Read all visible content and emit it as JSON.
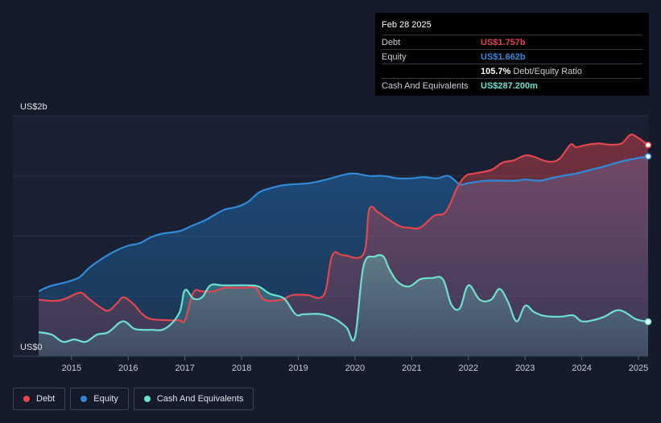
{
  "colors": {
    "debt": "#e2464f",
    "equity": "#2f8ad8",
    "cash": "#6ee0cf",
    "grid": "#2a3140",
    "background": "#151b2b"
  },
  "tooltip": {
    "date": "Feb 28 2025",
    "rows": [
      {
        "label": "Debt",
        "value": "US$1.757b"
      },
      {
        "label": "Equity",
        "value": "US$1.662b"
      },
      {
        "label": "",
        "value": "105.7%",
        "suffix": "Debt/Equity Ratio"
      },
      {
        "label": "Cash And Equivalents",
        "value": "US$287.200m"
      }
    ]
  },
  "legend": [
    {
      "label": "Debt"
    },
    {
      "label": "Equity"
    },
    {
      "label": "Cash And Equivalents"
    }
  ],
  "chart_data": {
    "type": "area",
    "title": "",
    "xlabel": "",
    "ylabel": "",
    "y_tick_labels": [
      {
        "value": 2.0,
        "label": "US$2b"
      },
      {
        "value": 0,
        "label": "US$0"
      }
    ],
    "ylim": [
      0,
      2.0
    ],
    "xlim": [
      2014.42,
      2025.17
    ],
    "x_ticks": [
      2015,
      2016,
      2017,
      2018,
      2019,
      2020,
      2021,
      2022,
      2023,
      2024,
      2025
    ],
    "grid": "horizontal",
    "legend_position": "bottom-left",
    "series": [
      {
        "name": "Debt",
        "x": [
          2014.42,
          2014.7,
          2014.9,
          2015.15,
          2015.3,
          2015.5,
          2015.65,
          2015.8,
          2015.92,
          2016.1,
          2016.25,
          2016.4,
          2016.7,
          2016.9,
          2017.0,
          2017.15,
          2017.3,
          2017.5,
          2017.7,
          2017.9,
          2018.1,
          2018.25,
          2018.4,
          2018.7,
          2018.9,
          2019.15,
          2019.45,
          2019.6,
          2019.8,
          2020.15,
          2020.25,
          2020.4,
          2020.55,
          2020.8,
          2020.95,
          2021.15,
          2021.4,
          2021.6,
          2021.8,
          2021.95,
          2022.1,
          2022.4,
          2022.6,
          2022.8,
          2023.0,
          2023.15,
          2023.4,
          2023.6,
          2023.8,
          2023.9,
          2024.1,
          2024.3,
          2024.5,
          2024.7,
          2024.85,
          2024.95,
          2025.17
        ],
        "values": [
          0.47,
          0.46,
          0.48,
          0.53,
          0.48,
          0.41,
          0.38,
          0.44,
          0.49,
          0.43,
          0.35,
          0.31,
          0.3,
          0.3,
          0.3,
          0.53,
          0.54,
          0.54,
          0.57,
          0.57,
          0.57,
          0.57,
          0.47,
          0.47,
          0.51,
          0.51,
          0.51,
          0.84,
          0.84,
          0.85,
          1.22,
          1.2,
          1.15,
          1.08,
          1.07,
          1.07,
          1.17,
          1.2,
          1.4,
          1.5,
          1.52,
          1.55,
          1.61,
          1.63,
          1.67,
          1.66,
          1.62,
          1.64,
          1.76,
          1.74,
          1.76,
          1.77,
          1.76,
          1.77,
          1.84,
          1.83,
          1.757
        ]
      },
      {
        "name": "Equity",
        "x": [
          2014.42,
          2014.6,
          2014.85,
          2015.0,
          2015.15,
          2015.3,
          2015.5,
          2015.75,
          2016.0,
          2016.2,
          2016.4,
          2016.6,
          2016.9,
          2017.1,
          2017.35,
          2017.5,
          2017.7,
          2017.9,
          2018.1,
          2018.3,
          2018.45,
          2018.7,
          2018.9,
          2019.2,
          2019.5,
          2019.8,
          2020.0,
          2020.25,
          2020.5,
          2020.75,
          2021.0,
          2021.2,
          2021.45,
          2021.65,
          2021.85,
          2022.0,
          2022.3,
          2022.6,
          2022.85,
          2023.0,
          2023.25,
          2023.45,
          2023.65,
          2023.9,
          2024.15,
          2024.4,
          2024.7,
          2024.95,
          2025.17
        ],
        "values": [
          0.54,
          0.58,
          0.61,
          0.63,
          0.66,
          0.73,
          0.8,
          0.87,
          0.92,
          0.94,
          0.99,
          1.02,
          1.04,
          1.08,
          1.13,
          1.17,
          1.22,
          1.24,
          1.28,
          1.36,
          1.39,
          1.42,
          1.43,
          1.44,
          1.47,
          1.51,
          1.52,
          1.5,
          1.5,
          1.48,
          1.48,
          1.49,
          1.48,
          1.5,
          1.43,
          1.44,
          1.46,
          1.46,
          1.46,
          1.47,
          1.46,
          1.48,
          1.5,
          1.52,
          1.55,
          1.58,
          1.62,
          1.645,
          1.662
        ]
      },
      {
        "name": "Cash And Equivalents",
        "x": [
          2014.42,
          2014.65,
          2014.85,
          2015.05,
          2015.25,
          2015.45,
          2015.65,
          2015.9,
          2016.1,
          2016.25,
          2016.4,
          2016.65,
          2016.9,
          2017.0,
          2017.15,
          2017.3,
          2017.45,
          2017.65,
          2017.9,
          2018.1,
          2018.3,
          2018.5,
          2018.75,
          2018.95,
          2019.1,
          2019.4,
          2019.65,
          2019.85,
          2020.0,
          2020.15,
          2020.35,
          2020.5,
          2020.6,
          2020.75,
          2020.95,
          2021.15,
          2021.35,
          2021.55,
          2021.7,
          2021.85,
          2022.0,
          2022.2,
          2022.4,
          2022.55,
          2022.7,
          2022.85,
          2023.0,
          2023.15,
          2023.3,
          2023.45,
          2023.65,
          2023.85,
          2024.0,
          2024.2,
          2024.4,
          2024.6,
          2024.75,
          2024.95,
          2025.17
        ],
        "values": [
          0.2,
          0.18,
          0.12,
          0.14,
          0.12,
          0.18,
          0.2,
          0.29,
          0.23,
          0.22,
          0.22,
          0.23,
          0.36,
          0.55,
          0.48,
          0.49,
          0.59,
          0.59,
          0.59,
          0.59,
          0.58,
          0.52,
          0.48,
          0.35,
          0.35,
          0.35,
          0.31,
          0.24,
          0.16,
          0.75,
          0.83,
          0.83,
          0.73,
          0.62,
          0.58,
          0.64,
          0.65,
          0.64,
          0.43,
          0.4,
          0.59,
          0.47,
          0.47,
          0.56,
          0.45,
          0.29,
          0.42,
          0.37,
          0.34,
          0.33,
          0.33,
          0.34,
          0.29,
          0.3,
          0.33,
          0.38,
          0.37,
          0.31,
          0.2872
        ]
      }
    ]
  }
}
